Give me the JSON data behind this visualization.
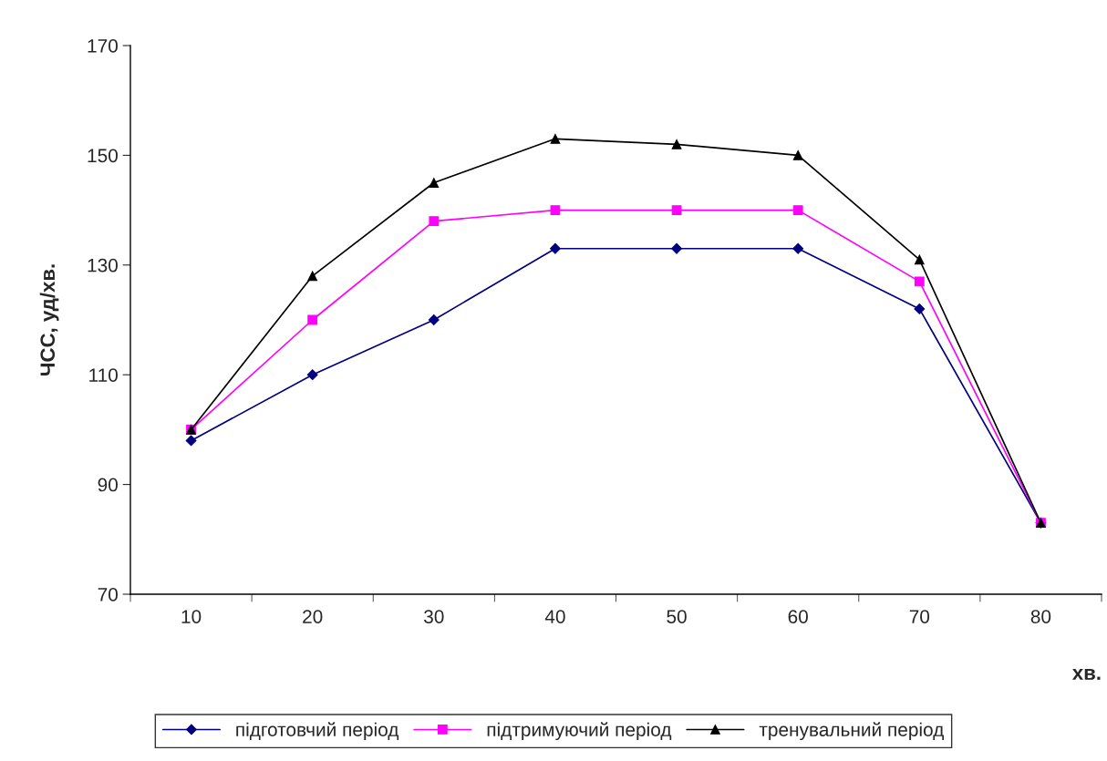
{
  "chart_data": {
    "type": "line",
    "xlabel": "хв.",
    "ylabel": "ЧСС, уд/хв.",
    "categories": [
      "10",
      "20",
      "30",
      "40",
      "50",
      "60",
      "70",
      "80"
    ],
    "series": [
      {
        "name": "підготовчий період",
        "color": "#000080",
        "marker": "diamond",
        "values": [
          98,
          110,
          120,
          133,
          133,
          133,
          122,
          83
        ]
      },
      {
        "name": "підтримуючий період",
        "color": "#ff00ff",
        "marker": "square",
        "values": [
          100,
          120,
          138,
          140,
          140,
          140,
          127,
          83
        ]
      },
      {
        "name": "тренувальний період",
        "color": "#000000",
        "marker": "triangle",
        "values": [
          100,
          128,
          145,
          153,
          152,
          150,
          131,
          83
        ]
      }
    ],
    "ylim": [
      70,
      170
    ],
    "yticks": [
      70,
      90,
      110,
      130,
      150,
      170
    ],
    "grid": false,
    "legend": "bottom",
    "line_style": "solid"
  }
}
